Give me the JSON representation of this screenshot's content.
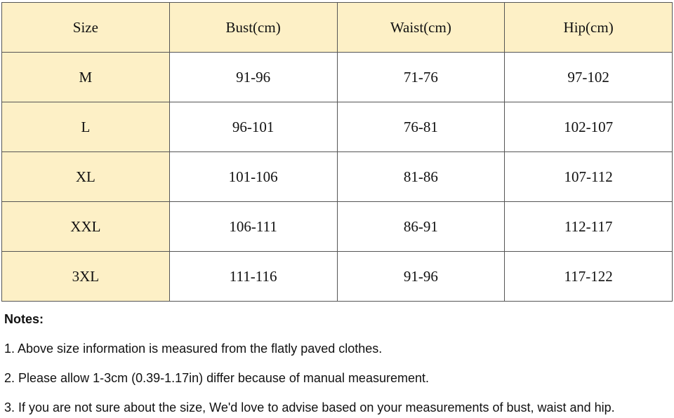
{
  "table": {
    "header": [
      "Size",
      "Bust(cm)",
      "Waist(cm)",
      "Hip(cm)"
    ],
    "rows": [
      [
        "M",
        "91-96",
        "71-76",
        "97-102"
      ],
      [
        "L",
        "96-101",
        "76-81",
        "102-107"
      ],
      [
        "XL",
        "101-106",
        "81-86",
        "107-112"
      ],
      [
        "XXL",
        "106-111",
        "86-91",
        "112-117"
      ],
      [
        "3XL",
        "111-116",
        "91-96",
        "117-122"
      ]
    ]
  },
  "notes": {
    "title": "Notes:",
    "items": [
      "1. Above size information is measured from the flatly paved clothes.",
      "2. Please allow 1-3cm (0.39-1.17in) differ because of manual measurement.",
      "3. If you are not sure about the size, We'd love to advise based on your measurements of bust, waist and hip."
    ]
  }
}
